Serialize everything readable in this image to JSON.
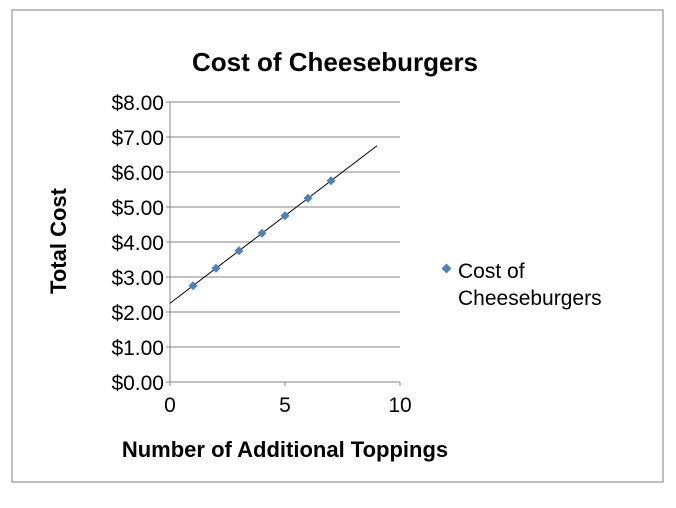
{
  "chart_data": {
    "type": "scatter",
    "title": "Cost of Cheeseburgers",
    "xlabel": "Number of Additional Toppings",
    "ylabel": "Total Cost",
    "xlim": [
      0,
      10
    ],
    "ylim": [
      0,
      8
    ],
    "x_ticks": [
      0,
      5,
      10
    ],
    "y_ticks": [
      0,
      1,
      2,
      3,
      4,
      5,
      6,
      7,
      8
    ],
    "x_tick_labels": [
      "0",
      "5",
      "10"
    ],
    "y_tick_labels": [
      "$0.00",
      "$1.00",
      "$2.00",
      "$3.00",
      "$4.00",
      "$5.00",
      "$6.00",
      "$7.00",
      "$8.00"
    ],
    "grid": "horizontal",
    "legend_position": "right",
    "series": [
      {
        "name": "Cost of Cheeseburgers",
        "x": [
          1,
          2,
          3,
          4,
          5,
          6,
          7
        ],
        "y": [
          2.75,
          3.25,
          3.75,
          4.25,
          4.75,
          5.25,
          5.75
        ],
        "color": "#4f81bd",
        "marker": "diamond"
      }
    ],
    "trendline": {
      "type": "linear",
      "slope": 0.5,
      "intercept": 2.25,
      "x_range": [
        0,
        9
      ],
      "color": "#000000"
    },
    "legend": {
      "line1": "Cost of",
      "line2": "Cheeseburgers"
    }
  }
}
